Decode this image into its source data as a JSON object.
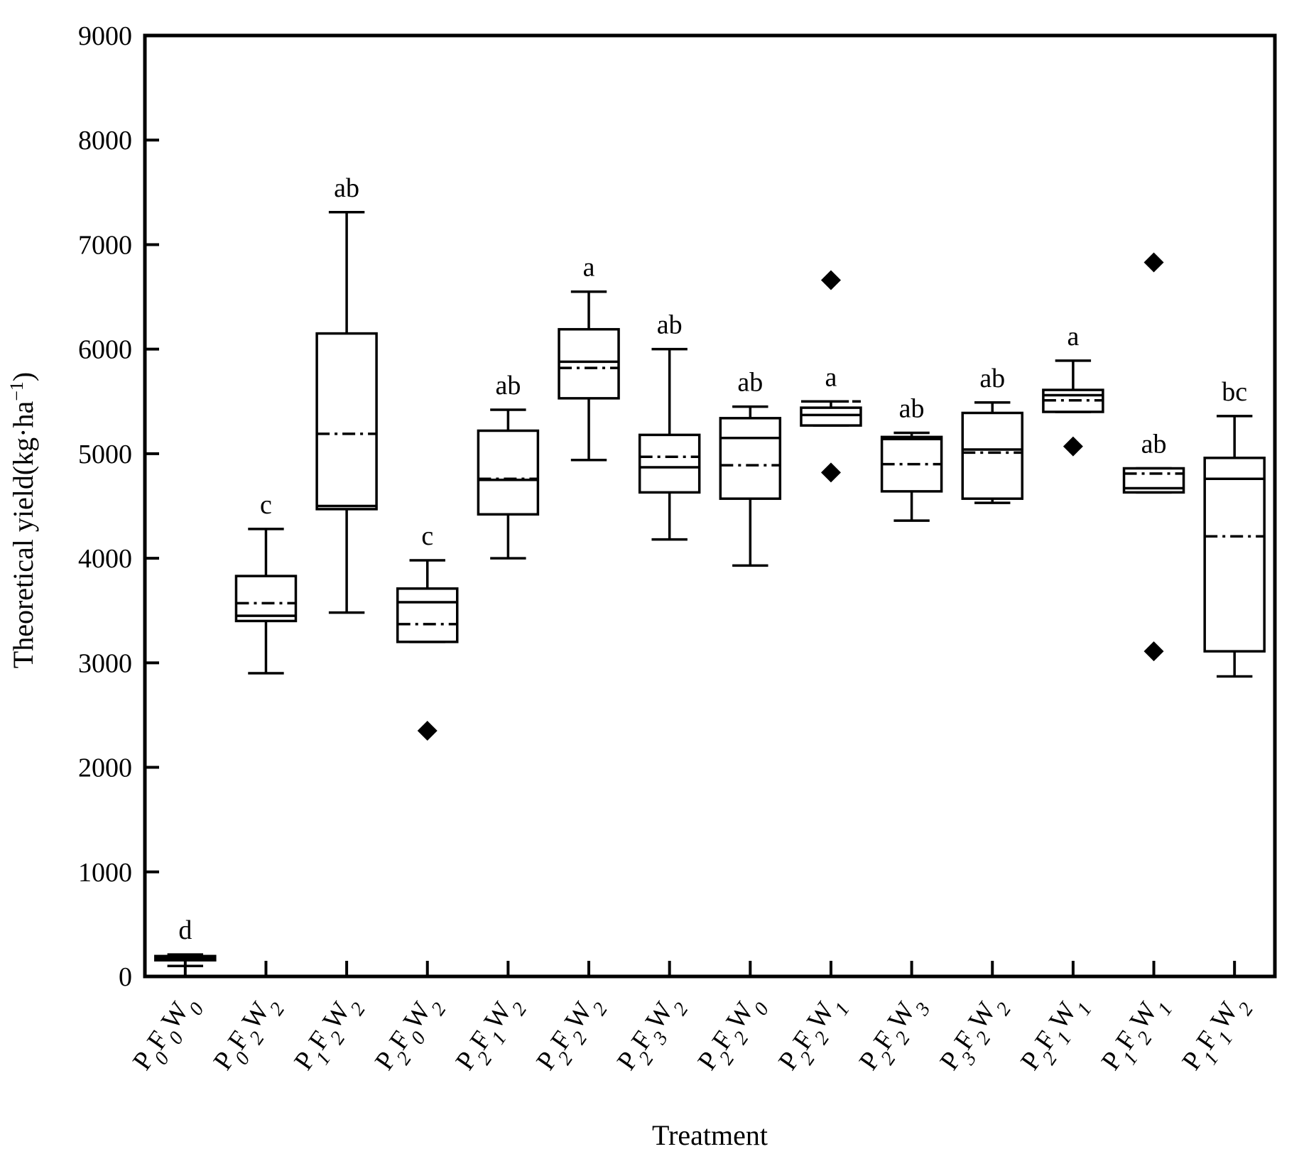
{
  "chart_data": {
    "type": "box",
    "xlabel": "Treatment",
    "ylabel": "Theoretical yield(kg·ha",
    "ylabel_unit_sup": "−1",
    "ylabel_close": ")",
    "ylim": [
      0,
      9000
    ],
    "yticks": [
      0,
      1000,
      2000,
      3000,
      4000,
      5000,
      6000,
      7000,
      8000,
      9000
    ],
    "legend": "none",
    "series": [
      {
        "name": "P0F0W0",
        "parts": [
          [
            "P",
            ""
          ],
          [
            "0",
            "sub"
          ],
          [
            "F",
            ""
          ],
          [
            "0",
            "sub"
          ],
          [
            "W",
            ""
          ],
          [
            "0",
            "sub"
          ]
        ],
        "whisker_low": 100,
        "q1": 155,
        "median": 175,
        "mean": 160,
        "q3": 195,
        "whisker_high": 210,
        "outliers": [],
        "sig": "d"
      },
      {
        "name": "P0F2W2",
        "parts": [
          [
            "P",
            ""
          ],
          [
            "0",
            "sub"
          ],
          [
            "F",
            ""
          ],
          [
            "2",
            "sub"
          ],
          [
            "W",
            ""
          ],
          [
            "2",
            "sub"
          ]
        ],
        "whisker_low": 2900,
        "q1": 3400,
        "median": 3450,
        "mean": 3570,
        "q3": 3830,
        "whisker_high": 4280,
        "outliers": [],
        "sig": "c"
      },
      {
        "name": "P1F2W2",
        "parts": [
          [
            "P",
            ""
          ],
          [
            "1",
            "sub"
          ],
          [
            "F",
            ""
          ],
          [
            "2",
            "sub"
          ],
          [
            "W",
            ""
          ],
          [
            "2",
            "sub"
          ]
        ],
        "whisker_low": 3480,
        "q1": 4470,
        "median": 4500,
        "mean": 5190,
        "q3": 6150,
        "whisker_high": 7310,
        "outliers": [],
        "sig": "ab"
      },
      {
        "name": "P2F0W2",
        "parts": [
          [
            "P",
            ""
          ],
          [
            "2",
            "sub"
          ],
          [
            "F",
            ""
          ],
          [
            "0",
            "sub"
          ],
          [
            "W",
            ""
          ],
          [
            "2",
            "sub"
          ]
        ],
        "whisker_low": 3200,
        "q1": 3200,
        "median": 3580,
        "mean": 3370,
        "q3": 3710,
        "whisker_high": 3980,
        "outliers": [
          2350
        ],
        "sig": "c"
      },
      {
        "name": "P2F1W2",
        "parts": [
          [
            "P",
            ""
          ],
          [
            "2",
            "sub"
          ],
          [
            "F",
            ""
          ],
          [
            "1",
            "sub"
          ],
          [
            "W",
            ""
          ],
          [
            "2",
            "sub"
          ]
        ],
        "whisker_low": 4000,
        "q1": 4420,
        "median": 4750,
        "mean": 4760,
        "q3": 5220,
        "whisker_high": 5420,
        "outliers": [],
        "sig": "ab"
      },
      {
        "name": "P2F2W2",
        "parts": [
          [
            "P",
            ""
          ],
          [
            "2",
            "sub"
          ],
          [
            "F",
            ""
          ],
          [
            "2",
            "sub"
          ],
          [
            "W",
            ""
          ],
          [
            "2",
            "sub"
          ]
        ],
        "whisker_low": 4940,
        "q1": 5530,
        "median": 5880,
        "mean": 5820,
        "q3": 6190,
        "whisker_high": 6550,
        "outliers": [],
        "sig": "a"
      },
      {
        "name": "P2F3W2",
        "parts": [
          [
            "P",
            ""
          ],
          [
            "2",
            "sub"
          ],
          [
            "F",
            ""
          ],
          [
            "3",
            "sub"
          ],
          [
            "W",
            ""
          ],
          [
            "2",
            "sub"
          ]
        ],
        "whisker_low": 4180,
        "q1": 4630,
        "median": 4870,
        "mean": 4970,
        "q3": 5180,
        "whisker_high": 6000,
        "outliers": [],
        "sig": "ab"
      },
      {
        "name": "P2F2W0",
        "parts": [
          [
            "P",
            ""
          ],
          [
            "2",
            "sub"
          ],
          [
            "F",
            ""
          ],
          [
            "2",
            "sub"
          ],
          [
            "W",
            ""
          ],
          [
            "0",
            "sub"
          ]
        ],
        "whisker_low": 3930,
        "q1": 4570,
        "median": 5150,
        "mean": 4890,
        "q3": 5340,
        "whisker_high": 5450,
        "outliers": [],
        "sig": "ab"
      },
      {
        "name": "P2F2W1",
        "parts": [
          [
            "P",
            ""
          ],
          [
            "2",
            "sub"
          ],
          [
            "F",
            ""
          ],
          [
            "2",
            "sub"
          ],
          [
            "W",
            ""
          ],
          [
            "1",
            "sub"
          ]
        ],
        "whisker_low": 5270,
        "q1": 5270,
        "median": 5370,
        "mean": 5500,
        "q3": 5440,
        "whisker_high": 5500,
        "outliers": [
          6660,
          4820
        ],
        "sig": "a"
      },
      {
        "name": "P2F2W3",
        "parts": [
          [
            "P",
            ""
          ],
          [
            "2",
            "sub"
          ],
          [
            "F",
            ""
          ],
          [
            "2",
            "sub"
          ],
          [
            "W",
            ""
          ],
          [
            "3",
            "sub"
          ]
        ],
        "whisker_low": 4360,
        "q1": 4640,
        "median": 5140,
        "mean": 4900,
        "q3": 5160,
        "whisker_high": 5200,
        "outliers": [],
        "sig": "ab"
      },
      {
        "name": "P3F2W2",
        "parts": [
          [
            "P",
            ""
          ],
          [
            "3",
            "sub"
          ],
          [
            "F",
            ""
          ],
          [
            "2",
            "sub"
          ],
          [
            "W",
            ""
          ],
          [
            "2",
            "sub"
          ]
        ],
        "whisker_low": 4530,
        "q1": 4570,
        "median": 5040,
        "mean": 5010,
        "q3": 5390,
        "whisker_high": 5490,
        "outliers": [],
        "sig": "ab"
      },
      {
        "name": "P2F1W1",
        "parts": [
          [
            "P",
            ""
          ],
          [
            "2",
            "sub"
          ],
          [
            "F",
            ""
          ],
          [
            "1",
            "sub"
          ],
          [
            "W",
            ""
          ],
          [
            "1",
            "sub"
          ]
        ],
        "whisker_low": 5400,
        "q1": 5400,
        "median": 5560,
        "mean": 5510,
        "q3": 5610,
        "whisker_high": 5890,
        "outliers": [
          5070
        ],
        "sig": "a"
      },
      {
        "name": "P1F2W1",
        "parts": [
          [
            "P",
            ""
          ],
          [
            "1",
            "sub"
          ],
          [
            "F",
            ""
          ],
          [
            "2",
            "sub"
          ],
          [
            "W",
            ""
          ],
          [
            "1",
            "sub"
          ]
        ],
        "whisker_low": 4630,
        "q1": 4630,
        "median": 4670,
        "mean": 4810,
        "q3": 4860,
        "whisker_high": 4860,
        "outliers": [
          6830,
          3110
        ],
        "sig": "ab"
      },
      {
        "name": "P1F1W2",
        "parts": [
          [
            "P",
            ""
          ],
          [
            "1",
            "sub"
          ],
          [
            "F",
            ""
          ],
          [
            "1",
            "sub"
          ],
          [
            "W",
            ""
          ],
          [
            "2",
            "sub"
          ]
        ],
        "whisker_low": 2870,
        "q1": 3110,
        "median": 4760,
        "mean": 4210,
        "q3": 4960,
        "whisker_high": 5360,
        "outliers": [],
        "sig": "bc"
      }
    ]
  }
}
